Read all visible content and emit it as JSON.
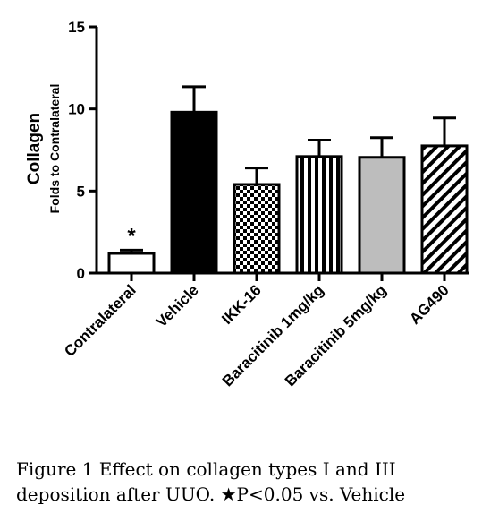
{
  "chart_data": {
    "type": "bar",
    "categories": [
      "Contralateral",
      "Vehicle",
      "IKK-16",
      "Baracitinib 1mg/kg",
      "Baracitinib 5mg/kg",
      "AG490"
    ],
    "values": [
      1.2,
      9.8,
      5.4,
      7.1,
      7.05,
      7.75
    ],
    "errors": [
      0.2,
      1.55,
      1.0,
      1.0,
      1.2,
      1.7
    ],
    "fills": [
      "white",
      "black",
      "checker",
      "vertical-stripes",
      "#bdbdbd",
      "diagonal-stripes"
    ],
    "significance": [
      "*",
      "",
      "",
      "",
      "",
      ""
    ],
    "ylabel": "Collagen",
    "ylabel_sub": "Folds to Contralateral",
    "ylim": [
      0,
      15
    ],
    "yticks": [
      "0",
      "5",
      "10",
      "15"
    ],
    "grid": false
  },
  "caption": {
    "line1": "Figure 1 Effect on collagen types I and III",
    "line2": "deposition after UUO. ★P<0.05 vs. Vehicle"
  }
}
